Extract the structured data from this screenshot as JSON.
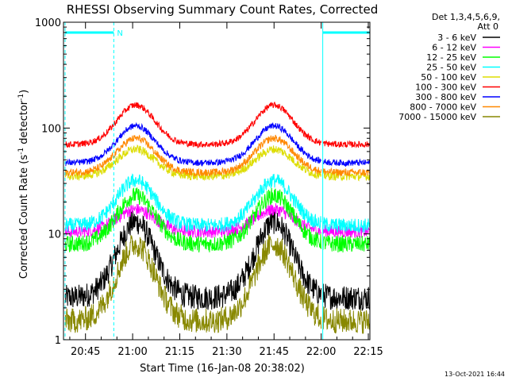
{
  "chart_data": {
    "type": "line",
    "title": "RHESSI Observing Summary Count Rates, Corrected",
    "xlabel": "Start Time (16-Jan-08 20:38:02)",
    "ylabel": "Corrected Count Rate (s",
    "ylabel_exp1": "-1",
    "ylabel_mid": " detector",
    "ylabel_exp2": "-1",
    "ylabel_end": ")",
    "yscale": "log",
    "ylim": [
      1,
      1000
    ],
    "xlim_minutes": [
      38.0,
      135.5
    ],
    "x_ticks": [
      {
        "m": 45,
        "label": "20:45"
      },
      {
        "m": 60,
        "label": "21:00"
      },
      {
        "m": 75,
        "label": "21:15"
      },
      {
        "m": 90,
        "label": "21:30"
      },
      {
        "m": 105,
        "label": "21:45"
      },
      {
        "m": 120,
        "label": "22:00"
      },
      {
        "m": 135,
        "label": "22:15"
      }
    ],
    "y_ticks": [
      {
        "v": 1,
        "label": "1"
      },
      {
        "v": 10,
        "label": "10"
      },
      {
        "v": 100,
        "label": "100"
      },
      {
        "v": 1000,
        "label": "1000"
      }
    ],
    "legend": {
      "header_line1": "Det 1,3,4,5,6,9,",
      "header_line2": "Att 0",
      "placement": "right"
    },
    "series": [
      {
        "name": "3 - 6 keV",
        "color": "#000000",
        "base": 2.5,
        "peak": 13,
        "noise": 0.12
      },
      {
        "name": "6 - 12 keV",
        "color": "#ff00ff",
        "base": 10.5,
        "peak": 17,
        "noise": 0.06
      },
      {
        "name": "12 - 25 keV",
        "color": "#00ff00",
        "base": 8,
        "peak": 23,
        "noise": 0.08
      },
      {
        "name": "25 - 50 keV",
        "color": "#00ffff",
        "base": 12,
        "peak": 32,
        "noise": 0.07
      },
      {
        "name": "50 - 100 keV",
        "color": "#dddd00",
        "base": 35,
        "peak": 63,
        "noise": 0.04
      },
      {
        "name": "100 - 300 keV",
        "color": "#ff0000",
        "base": 70,
        "peak": 165,
        "noise": 0.03
      },
      {
        "name": "300 - 800 keV",
        "color": "#0000ff",
        "base": 47,
        "peak": 105,
        "noise": 0.03
      },
      {
        "name": "800 - 7000 keV",
        "color": "#ff8800",
        "base": 38,
        "peak": 80,
        "noise": 0.035
      },
      {
        "name": "7000 - 15000 keV",
        "color": "#888800",
        "base": 1.5,
        "peak": 8,
        "noise": 0.12
      }
    ],
    "peaks_minutes": [
      61,
      105
    ],
    "gaps_minutes": [
      [
        38.0,
        38.5
      ],
      [
        120.0,
        120.5
      ]
    ],
    "night_markers": [
      {
        "from": 38.5,
        "to": 54.0,
        "label": "N"
      },
      {
        "from": 120.5,
        "to": 135.5,
        "label": ""
      }
    ],
    "saa_lines_minutes": [
      38.5,
      54.0,
      120.5,
      135.5
    ]
  },
  "footer": {
    "timestamp": "13-Oct-2021 16:44"
  }
}
